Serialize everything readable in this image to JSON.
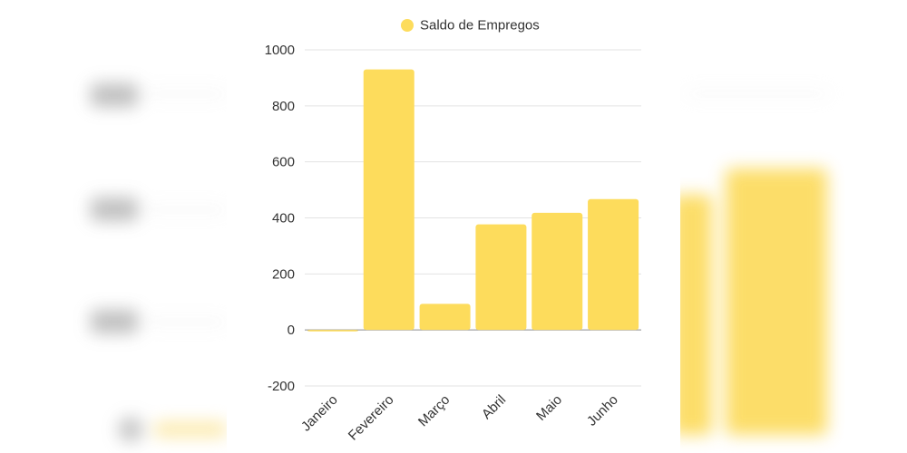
{
  "chart_data": {
    "type": "bar",
    "categories": [
      "Janeiro",
      "Fevereiro",
      "Março",
      "Abril",
      "Maio",
      "Junho"
    ],
    "series": [
      {
        "name": "Saldo de Empregos",
        "values": [
          -5,
          930,
          93,
          377,
          418,
          467
        ],
        "color": "#fddc5c"
      }
    ],
    "ylim": [
      -200,
      1000
    ],
    "yticks": [
      -200,
      0,
      200,
      400,
      600,
      800,
      1000
    ],
    "grid": true,
    "legend_position": "top-center"
  }
}
